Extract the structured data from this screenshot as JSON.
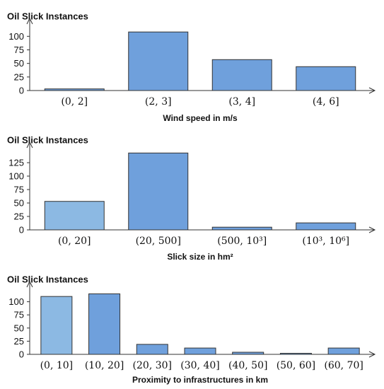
{
  "chart_data": [
    {
      "type": "bar",
      "title": "Oil Slick Instances",
      "xlabel": "Wind speed in m/s",
      "ylabel": "",
      "categories": [
        "(0, 2]",
        "(2, 3]",
        "(3, 4]",
        "(4, 6]"
      ],
      "values": [
        3,
        108,
        57,
        44
      ],
      "ylim": [
        0,
        120
      ],
      "yticks": [
        0,
        25,
        50,
        75,
        100
      ],
      "grid": false,
      "colors": [
        "#6fa0dc",
        "#6fa0dc",
        "#6fa0dc",
        "#6fa0dc"
      ]
    },
    {
      "type": "bar",
      "title": "Oil Slick Instances",
      "xlabel": "Slick size in hm²",
      "ylabel": "",
      "categories": [
        "(0, 20]",
        "(20, 500]",
        "(500, 10³]",
        "(10³, 10⁶]"
      ],
      "values": [
        53,
        143,
        5,
        13
      ],
      "ylim": [
        0,
        150
      ],
      "yticks": [
        0,
        25,
        50,
        75,
        100,
        125
      ],
      "grid": false,
      "colors": [
        "#8cb9e3",
        "#6fa0dc",
        "#6fa0dc",
        "#6fa0dc"
      ]
    },
    {
      "type": "bar",
      "title": "Oil Slick Instances",
      "xlabel": "Proximity to infrastructures in km",
      "ylabel": "",
      "categories": [
        "(0, 10]",
        "(10, 20]",
        "(20, 30]",
        "(30, 40]",
        "(40, 50]",
        "(50, 60]",
        "(60, 70]"
      ],
      "values": [
        110,
        115,
        19,
        12,
        4,
        2,
        12
      ],
      "ylim": [
        0,
        125
      ],
      "yticks": [
        0,
        25,
        50,
        75,
        100
      ],
      "grid": false,
      "colors": [
        "#8cb9e3",
        "#6fa0dc",
        "#6fa0dc",
        "#6fa0dc",
        "#6fa0dc",
        "#6fa0dc",
        "#6fa0dc"
      ]
    }
  ]
}
